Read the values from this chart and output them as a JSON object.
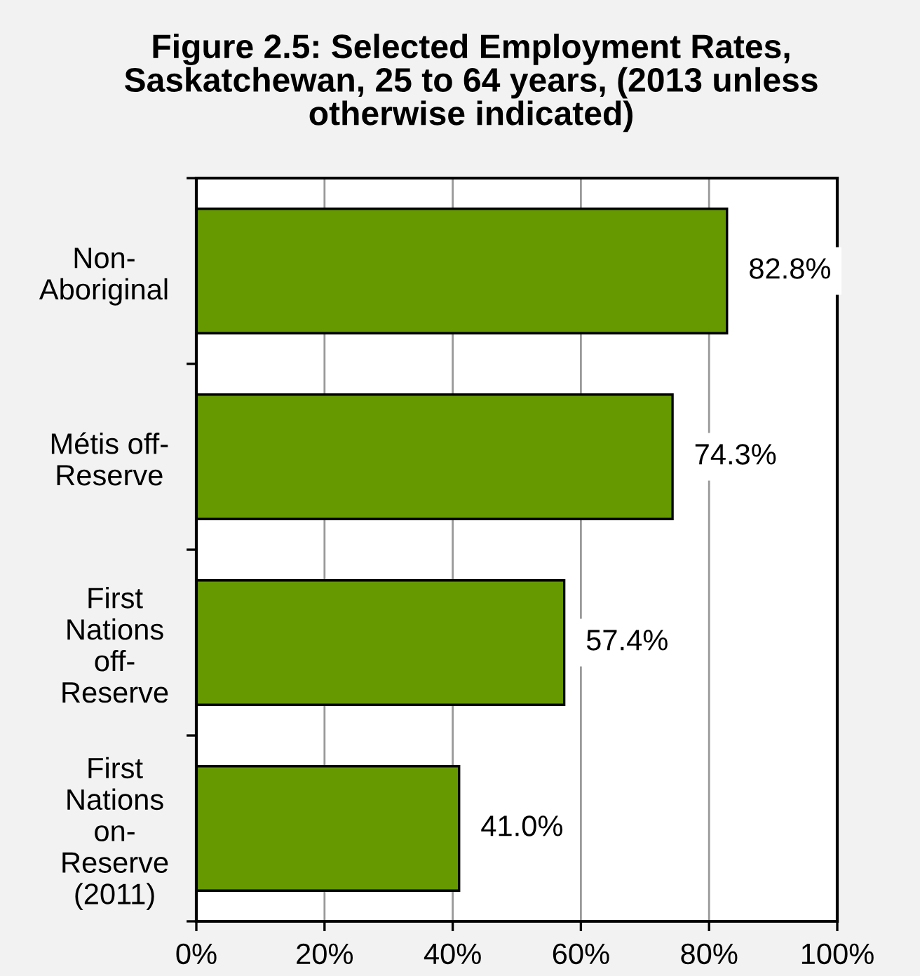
{
  "chart_data": {
    "type": "bar",
    "orientation": "horizontal",
    "title": "Figure 2.5: Selected Employment Rates,\nSaskatchewan, 25 to 64 years, (2013 unless\notherwise indicated)",
    "categories": [
      "Non-\nAboriginal",
      "Métis off-\nReserve",
      "First\nNations\noff-\nReserve",
      "First\nNations\non-\nReserve\n(2011)"
    ],
    "values": [
      82.8,
      74.3,
      57.4,
      41.0
    ],
    "value_labels": [
      "82.8%",
      "74.3%",
      "57.4%",
      "41.0%"
    ],
    "color": "#669900",
    "xlim": [
      0,
      100
    ],
    "xticks": [
      {
        "value": 0,
        "label": "0%"
      },
      {
        "value": 20,
        "label": "20%"
      },
      {
        "value": 40,
        "label": "40%"
      },
      {
        "value": 60,
        "label": "60%"
      },
      {
        "value": 80,
        "label": "80%"
      },
      {
        "value": 100,
        "label": "100%"
      }
    ],
    "grid": "x"
  }
}
